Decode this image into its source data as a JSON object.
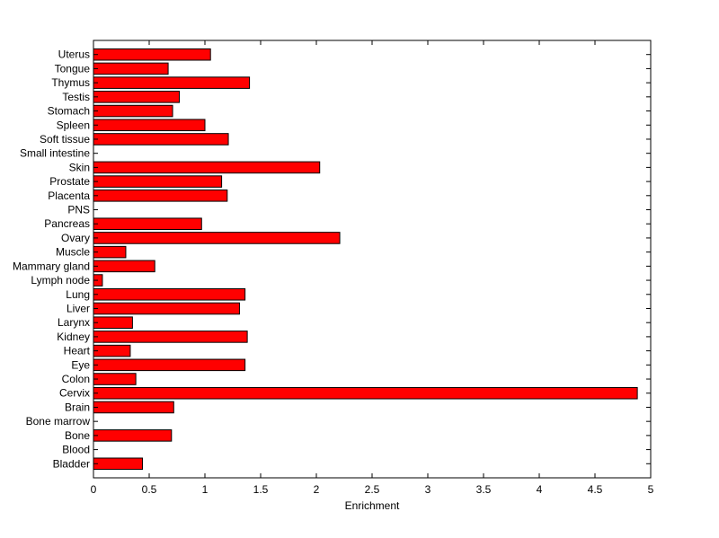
{
  "chart_data": {
    "type": "bar",
    "orientation": "horizontal",
    "title": "",
    "xlabel": "Enrichment",
    "ylabel": "",
    "xlim": [
      0,
      5
    ],
    "xticks": [
      "0",
      "0.5",
      "1",
      "1.5",
      "2",
      "2.5",
      "3",
      "3.5",
      "4",
      "4.5",
      "5"
    ],
    "grid": false,
    "legend": "none",
    "bar_color": "#ff0000",
    "categories": [
      "Bladder",
      "Blood",
      "Bone",
      "Bone marrow",
      "Brain",
      "Cervix",
      "Colon",
      "Eye",
      "Heart",
      "Kidney",
      "Larynx",
      "Liver",
      "Lung",
      "Lymph node",
      "Mammary gland",
      "Muscle",
      "Ovary",
      "Pancreas",
      "PNS",
      "Placenta",
      "Prostate",
      "Skin",
      "Small intestine",
      "Soft tissue",
      "Spleen",
      "Stomach",
      "Testis",
      "Thymus",
      "Tongue",
      "Uterus"
    ],
    "values": [
      0.44,
      0,
      0.7,
      0,
      0.72,
      4.88,
      0.38,
      1.36,
      0.33,
      1.38,
      0.35,
      1.31,
      1.36,
      0.08,
      0.55,
      0.29,
      2.21,
      0.97,
      0,
      1.2,
      1.15,
      2.03,
      0,
      1.21,
      1.0,
      0.71,
      0.77,
      1.4,
      0.67,
      1.05
    ]
  }
}
